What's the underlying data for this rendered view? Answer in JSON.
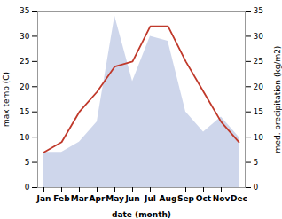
{
  "chart_data": {
    "type": "line",
    "categories": [
      "Jan",
      "Feb",
      "Mar",
      "Apr",
      "May",
      "Jun",
      "Jul",
      "Aug",
      "Sep",
      "Oct",
      "Nov",
      "Dec"
    ],
    "series": [
      {
        "type": "area",
        "color": "#c5cfe8",
        "axis": "y2",
        "values": [
          7,
          7,
          9,
          13,
          34,
          21,
          30,
          29,
          15,
          11,
          14,
          10
        ]
      },
      {
        "type": "line",
        "color": "#c0392b",
        "values": [
          7,
          9,
          15,
          19,
          24,
          25,
          32,
          32,
          25,
          19,
          13,
          9
        ]
      }
    ],
    "xlabel": "date (month)",
    "ylabel": "max temp (C)",
    "y2label": "med. precipitation (kg/m2)",
    "ylim": [
      0,
      35
    ],
    "yticks": [
      0,
      5,
      10,
      15,
      20,
      25,
      30,
      35
    ],
    "y2lim": [
      0,
      35
    ],
    "y2ticks": [
      0,
      5,
      10,
      15,
      20,
      25,
      30,
      35
    ]
  }
}
